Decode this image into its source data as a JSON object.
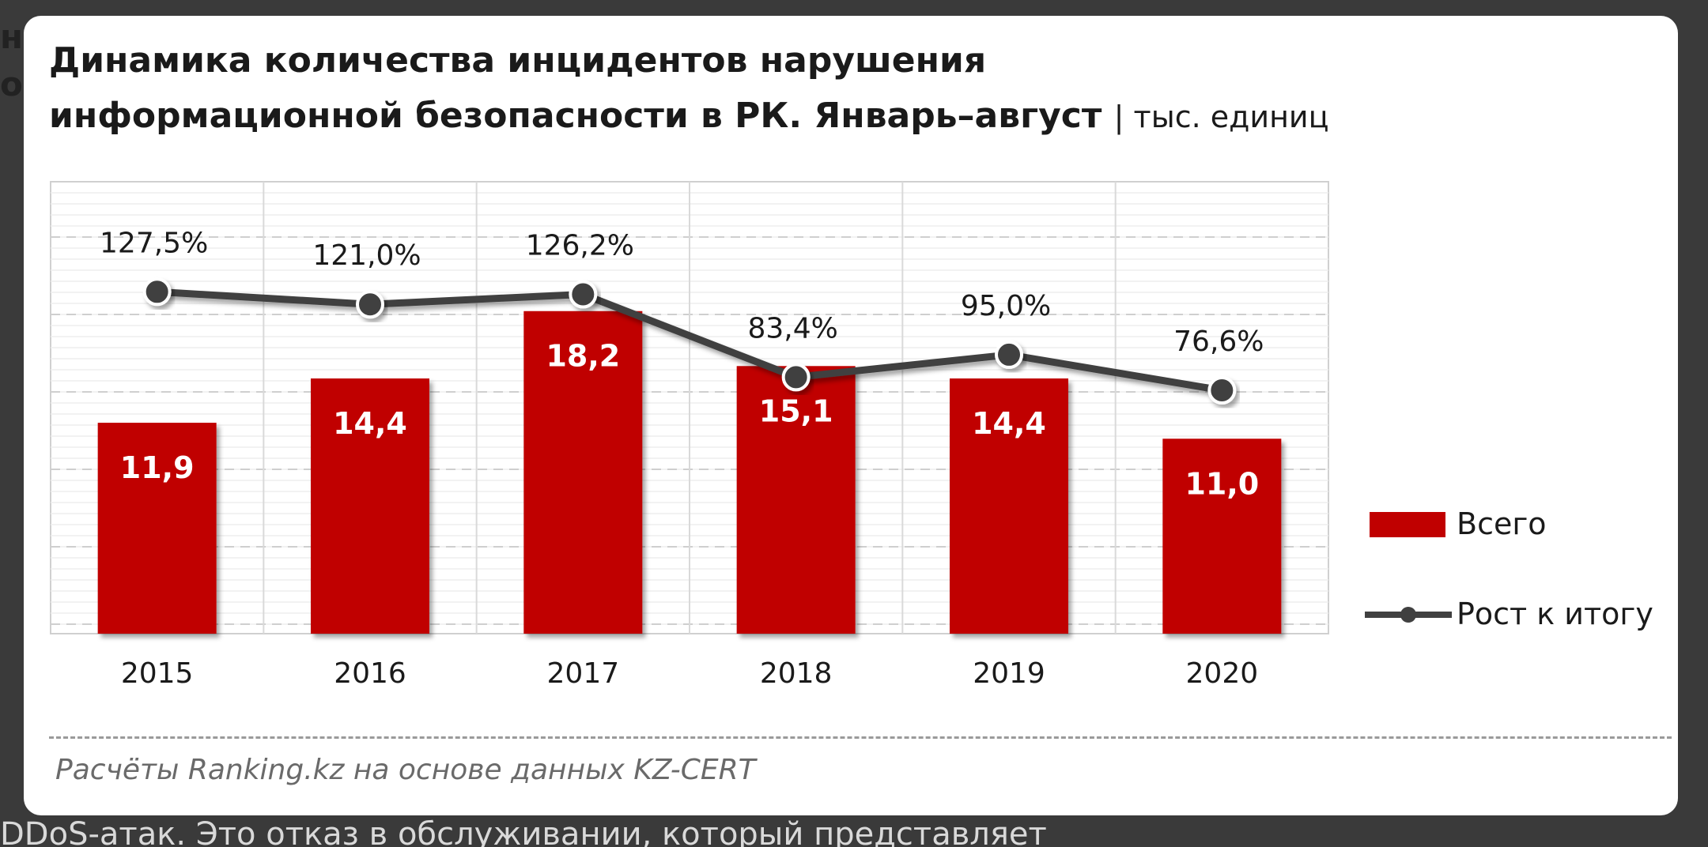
{
  "background": {
    "left_fragment_1": "н",
    "left_fragment_2": "о",
    "bottom_fragment": "DDoS-атак. Это отказ в обслуживании, который представляет"
  },
  "colors": {
    "bar": "#c00000",
    "line": "#404040",
    "grid": "#d9d9d9"
  },
  "chart_data": {
    "type": "bar",
    "title_line1": "Динамика количества инцидентов нарушения",
    "title_line2": "информационной безопасности в РК. Январь–август",
    "title_unit": "| тыс. единиц",
    "categories": [
      "2015",
      "2016",
      "2017",
      "2018",
      "2019",
      "2020"
    ],
    "series": [
      {
        "name": "Всего",
        "type": "bar",
        "values": [
          11.9,
          14.4,
          18.2,
          15.1,
          14.4,
          11.0
        ],
        "labels": [
          "11,9",
          "14,4",
          "18,2",
          "15,1",
          "14,4",
          "11,0"
        ]
      },
      {
        "name": "Рост к итогу",
        "type": "line",
        "values": [
          127.5,
          121.0,
          126.2,
          83.4,
          95.0,
          76.6
        ],
        "labels": [
          "127,5%",
          "121,0%",
          "126,2%",
          "83,4%",
          "95,0%",
          "76,6%"
        ]
      }
    ],
    "legend_position": "right",
    "grid": true,
    "source": "Расчёты Ranking.kz на основе данных KZ-CERT"
  }
}
